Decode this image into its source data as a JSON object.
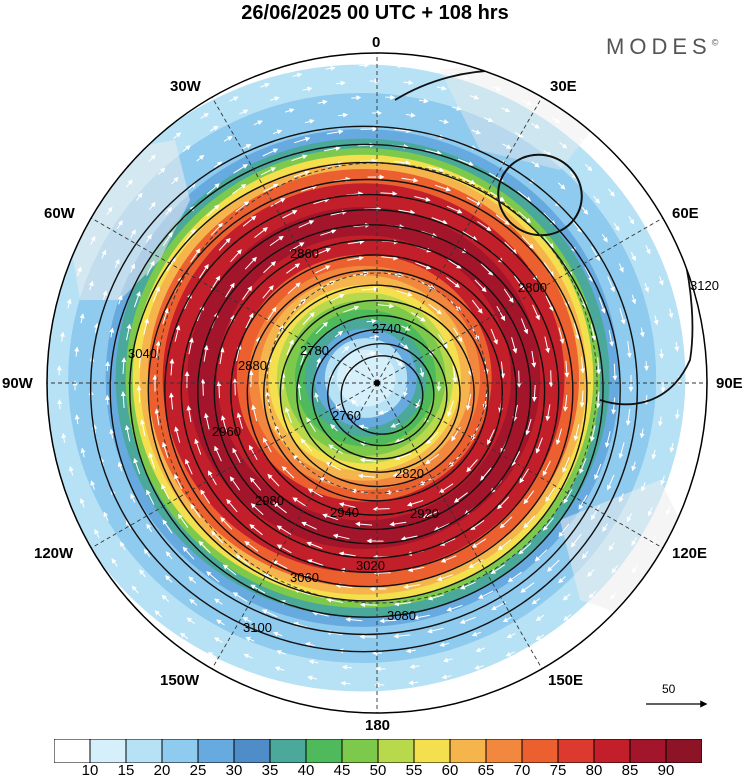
{
  "header": {
    "title": "26/06/2025  00 UTC  + 108 hrs",
    "brand": "MODES",
    "brand_mark": "©"
  },
  "longitude_labels": [
    {
      "id": "lon-0",
      "text": "0"
    },
    {
      "id": "lon-30e",
      "text": "30E"
    },
    {
      "id": "lon-60e",
      "text": "60E"
    },
    {
      "id": "lon-90e",
      "text": "90E"
    },
    {
      "id": "lon-120e",
      "text": "120E"
    },
    {
      "id": "lon-150e",
      "text": "150E"
    },
    {
      "id": "lon-180",
      "text": "180"
    },
    {
      "id": "lon-150w",
      "text": "150W"
    },
    {
      "id": "lon-120w",
      "text": "120W"
    },
    {
      "id": "lon-90w",
      "text": "90W"
    },
    {
      "id": "lon-60w",
      "text": "60W"
    },
    {
      "id": "lon-30w",
      "text": "30W"
    }
  ],
  "contour_labels": [
    "2740",
    "2760",
    "2780",
    "2800",
    "2820",
    "2860",
    "2880",
    "2920",
    "2940",
    "2960",
    "2980",
    "3020",
    "3040",
    "3060",
    "3080",
    "3100",
    "3120"
  ],
  "contour_label_positions_note": "",
  "reference_vector": {
    "value": "50"
  },
  "colorbar": {
    "colors": [
      "#ffffff",
      "#d6f0fb",
      "#b7e2f5",
      "#8fcbee",
      "#67aadf",
      "#4f8dc9",
      "#4aa99b",
      "#4fba5c",
      "#7cc94c",
      "#b9d94d",
      "#f4e04e",
      "#f6b54c",
      "#f2883e",
      "#ec6030",
      "#dc3a2e",
      "#c21f2a",
      "#a3152a",
      "#8c1426"
    ],
    "labels": [
      "10",
      "15",
      "20",
      "25",
      "30",
      "35",
      "40",
      "45",
      "50",
      "55",
      "60",
      "65",
      "70",
      "75",
      "80",
      "85",
      "90"
    ]
  },
  "colors": {
    "land": "#ececec",
    "grid": "#333333",
    "contour": "#111111"
  }
}
